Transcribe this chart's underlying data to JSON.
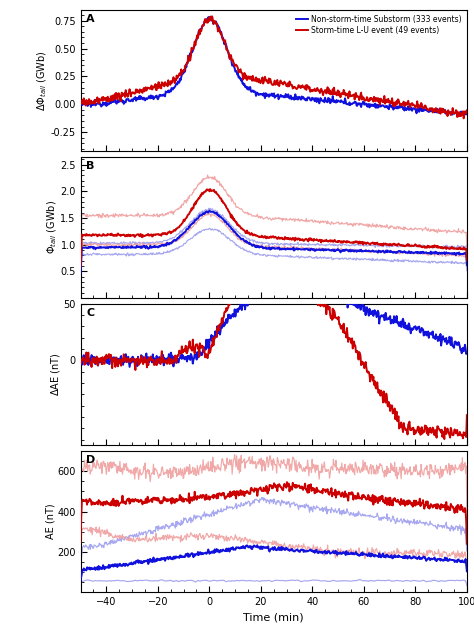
{
  "xlim": [
    -50,
    100
  ],
  "xlabel": "Time (min)",
  "legend_blue": "Non-storm-time Substorm (333 events)",
  "legend_red": "Storm-time L-U event (49 events)",
  "panel_labels": [
    "A",
    "B",
    "C",
    "D"
  ],
  "panel_A": {
    "ylabel": "$\\Delta\\Phi_{tail}$ (GWb)",
    "ylim": [
      -0.42,
      0.85
    ],
    "yticks": [
      0.75,
      0.5,
      0.25,
      0.0,
      -0.25
    ],
    "yticklabels": [
      "0.75",
      "0.50",
      "0.25",
      "0.00",
      "-0.25"
    ]
  },
  "panel_B": {
    "ylabel": "$\\Phi_{tail}$ (GWb)",
    "ylim": [
      0.0,
      2.65
    ],
    "yticks": [
      0.5,
      1.0,
      1.5,
      2.0,
      2.5
    ],
    "yticklabels": [
      "0.5",
      "1.0",
      "1.5",
      "2.0",
      "2.5"
    ]
  },
  "panel_C": {
    "ylabel": "$\\Delta$AE (nT)",
    "ylim": [
      -75,
      5
    ],
    "yticks": [
      0,
      50
    ],
    "yticklabels": [
      "0",
      "50"
    ]
  },
  "panel_D": {
    "ylabel": "AE (nT)",
    "ylim": [
      0,
      700
    ],
    "yticks": [
      200,
      400,
      600
    ],
    "yticklabels": [
      "200",
      "400",
      "600"
    ]
  },
  "blue_main": "#1111dd",
  "red_main": "#cc0000",
  "blue_light": "#9999ee",
  "red_light": "#ee9999",
  "xticks": [
    -40,
    -20,
    0,
    20,
    40,
    60,
    80,
    100
  ]
}
